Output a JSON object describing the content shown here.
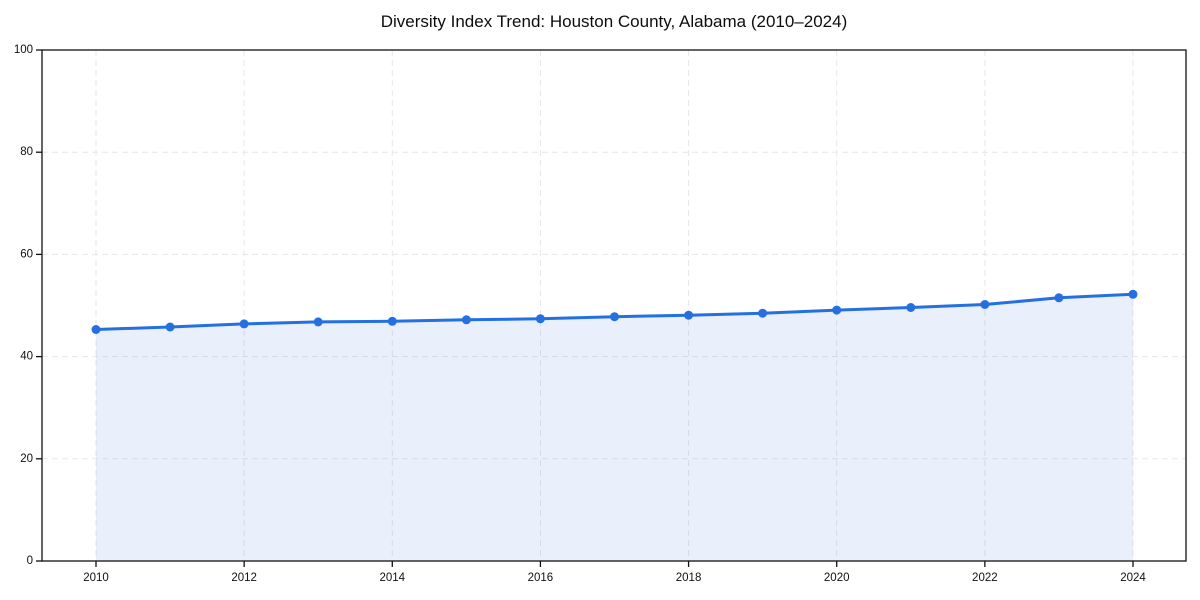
{
  "title": "Diversity Index Trend: Houston County, Alabama (2010–2024)",
  "chart_data": {
    "type": "area",
    "title": "Diversity Index Trend: Houston County, Alabama (2010–2024)",
    "xlabel": "",
    "ylabel": "",
    "x": [
      2010,
      2011,
      2012,
      2013,
      2014,
      2015,
      2016,
      2017,
      2018,
      2019,
      2020,
      2021,
      2022,
      2023,
      2024
    ],
    "series": [
      {
        "name": "Diversity Index",
        "values": [
          45.3,
          45.8,
          46.4,
          46.8,
          46.9,
          47.2,
          47.4,
          47.8,
          48.1,
          48.5,
          49.1,
          49.6,
          50.2,
          51.5,
          52.2
        ]
      }
    ],
    "ylim": [
      0,
      100
    ],
    "y_ticks": [
      0,
      20,
      40,
      60,
      80,
      100
    ],
    "x_ticks": [
      2010,
      2012,
      2014,
      2016,
      2018,
      2020,
      2022,
      2024
    ],
    "grid": true,
    "legend": "none",
    "marker": "circle",
    "colors": {
      "line": "#2570e0",
      "marker": "#2570e0",
      "area_fill": "#2570e0",
      "area_fill_opacity": "0.10",
      "grid": "#e7e7e7",
      "axis": "#111111",
      "text": "#111111",
      "background": "#ffffff"
    }
  }
}
